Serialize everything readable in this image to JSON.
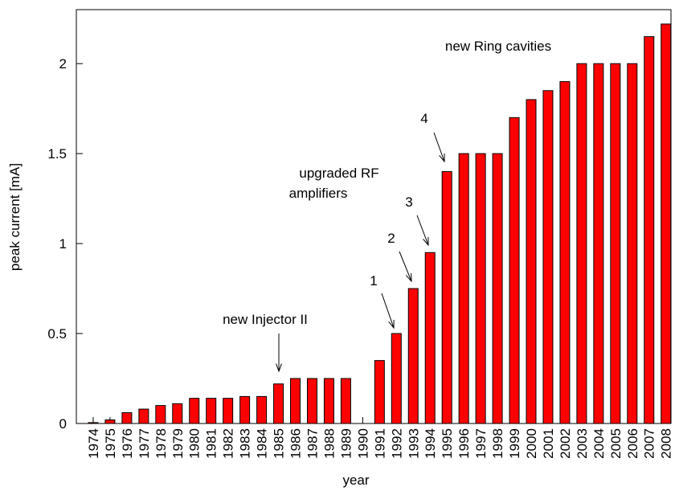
{
  "chart_data": {
    "type": "bar",
    "x_label": "year",
    "y_label": "peak current [mA]",
    "categories": [
      "1974",
      "1975",
      "1976",
      "1977",
      "1978",
      "1979",
      "1980",
      "1981",
      "1982",
      "1983",
      "1984",
      "1985",
      "1986",
      "1987",
      "1988",
      "1989",
      "1990",
      "1991",
      "1992",
      "1993",
      "1994",
      "1995",
      "1996",
      "1997",
      "1998",
      "1999",
      "2000",
      "2001",
      "2002",
      "2003",
      "2004",
      "2005",
      "2006",
      "2007",
      "2008"
    ],
    "values": [
      0.005,
      0.02,
      0.06,
      0.08,
      0.1,
      0.11,
      0.14,
      0.14,
      0.14,
      0.15,
      0.15,
      0.22,
      0.25,
      0.25,
      0.25,
      0.25,
      0,
      0.35,
      0.5,
      0.75,
      0.95,
      1.4,
      1.5,
      1.5,
      1.5,
      1.7,
      1.8,
      1.85,
      1.9,
      2,
      2,
      2,
      2,
      2.15,
      2.22
    ],
    "color": "#ff0000",
    "ylim": [
      0,
      2.3
    ],
    "yticks": [
      0,
      0.5,
      1,
      1.5,
      2
    ],
    "annotations": [
      "new Ring cavities",
      "upgraded RF",
      "amplifiers",
      "new Injector II",
      "1",
      "2",
      "3",
      "4"
    ]
  }
}
